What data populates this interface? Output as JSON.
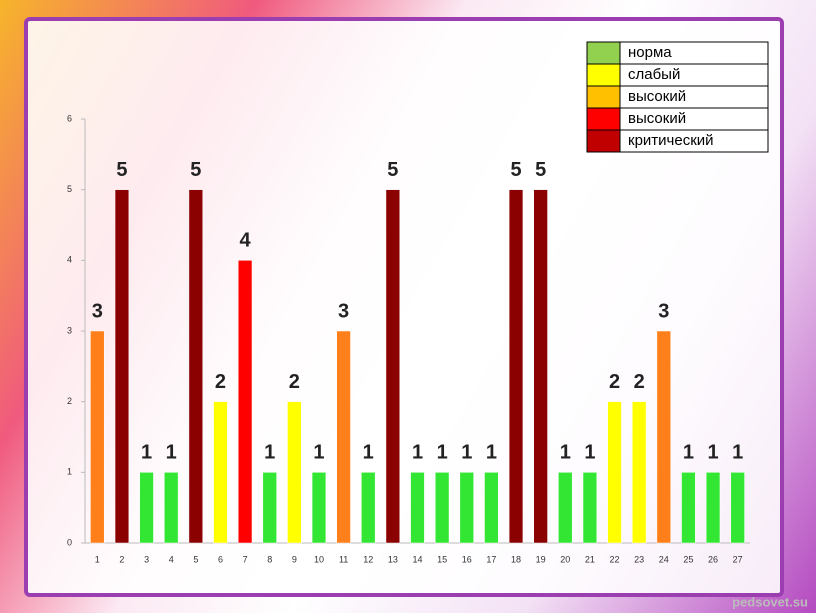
{
  "chart_data": {
    "type": "bar",
    "categories": [
      1,
      2,
      3,
      4,
      5,
      6,
      7,
      8,
      9,
      10,
      11,
      12,
      13,
      14,
      15,
      16,
      17,
      18,
      19,
      20,
      21,
      22,
      23,
      24,
      25,
      26,
      27
    ],
    "values": [
      3,
      5,
      1,
      1,
      5,
      2,
      4,
      1,
      2,
      1,
      3,
      1,
      5,
      1,
      1,
      1,
      1,
      5,
      5,
      1,
      1,
      2,
      2,
      3,
      1,
      1,
      1
    ],
    "colors": [
      "#ff7f1a",
      "#8b0000",
      "#33e633",
      "#33e633",
      "#8b0000",
      "#ffff00",
      "#ff0000",
      "#33e633",
      "#ffff00",
      "#33e633",
      "#ff7f1a",
      "#33e633",
      "#8b0000",
      "#33e633",
      "#33e633",
      "#33e633",
      "#33e633",
      "#8b0000",
      "#8b0000",
      "#33e633",
      "#33e633",
      "#ffff00",
      "#ffff00",
      "#ff7f1a",
      "#33e633",
      "#33e633",
      "#33e633"
    ],
    "ylim": [
      0,
      6
    ],
    "yticks": [
      0,
      1,
      2,
      3,
      4,
      5,
      6
    ],
    "legend": [
      {
        "name": "норма",
        "color": "#92d050"
      },
      {
        "name": "слабый",
        "color": "#ffff00"
      },
      {
        "name": "высокий",
        "color": "#ffc000"
      },
      {
        "name": "высокий",
        "color": "#ff0000"
      },
      {
        "name": "критический",
        "color": "#c00000"
      }
    ]
  },
  "watermark": "pedsovet.su"
}
